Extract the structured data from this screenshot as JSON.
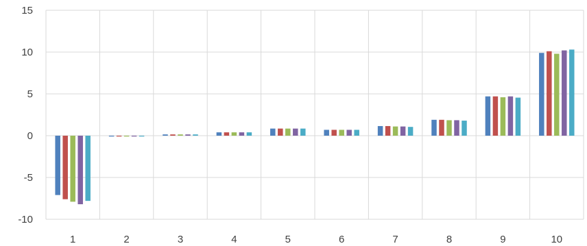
{
  "chart_data": {
    "type": "bar",
    "categories": [
      "1",
      "2",
      "3",
      "4",
      "5",
      "6",
      "7",
      "8",
      "9",
      "10"
    ],
    "ylim": [
      -10,
      15
    ],
    "yticks": [
      "-10",
      "-5",
      "0",
      "5",
      "10",
      "15"
    ],
    "ytick_values": [
      -10,
      -5,
      0,
      5,
      10,
      15
    ],
    "grid": true,
    "legend": "none",
    "series": [
      {
        "color": "#4f81bd",
        "values": [
          -7.1,
          -0.1,
          0.15,
          0.4,
          0.85,
          0.7,
          1.15,
          1.9,
          4.7,
          9.9
        ]
      },
      {
        "color": "#c0504d",
        "values": [
          -7.6,
          -0.1,
          0.15,
          0.4,
          0.85,
          0.7,
          1.15,
          1.9,
          4.7,
          10.1
        ]
      },
      {
        "color": "#9bbb59",
        "values": [
          -7.9,
          -0.1,
          0.15,
          0.4,
          0.85,
          0.7,
          1.1,
          1.85,
          4.6,
          9.8
        ]
      },
      {
        "color": "#8064a2",
        "values": [
          -8.2,
          -0.1,
          0.15,
          0.4,
          0.85,
          0.7,
          1.1,
          1.85,
          4.7,
          10.2
        ]
      },
      {
        "color": "#4bacc6",
        "values": [
          -7.8,
          -0.1,
          0.15,
          0.4,
          0.85,
          0.7,
          1.05,
          1.8,
          4.55,
          10.3
        ]
      }
    ]
  }
}
